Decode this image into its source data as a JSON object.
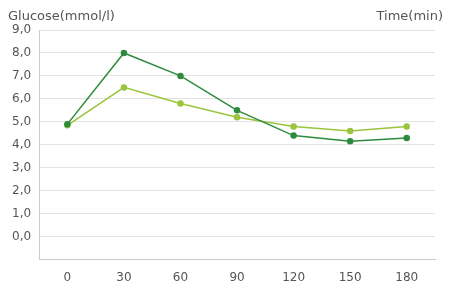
{
  "chart_data": {
    "type": "line",
    "y_label": "Glucose(mmol/l)",
    "x_label": "Time(min)",
    "categories": [
      "0",
      "30",
      "60",
      "90",
      "120",
      "150",
      "180"
    ],
    "series": [
      {
        "color": "#2e8b3e",
        "marker": "circle",
        "values": [
          4.9,
          8.0,
          7.0,
          5.5,
          4.4,
          4.15,
          4.3
        ]
      },
      {
        "color": "#9bc53d",
        "marker": "circle",
        "values": [
          4.85,
          6.5,
          5.8,
          5.2,
          4.8,
          4.6,
          4.8
        ]
      }
    ],
    "ylim": [
      -1,
      9
    ],
    "yticks": [
      {
        "value": 0,
        "label": "0,0"
      },
      {
        "value": 1,
        "label": "1,0"
      },
      {
        "value": 2,
        "label": "2,0"
      },
      {
        "value": 3,
        "label": "3,0"
      },
      {
        "value": 4,
        "label": "4,0"
      },
      {
        "value": 5,
        "label": "5,0"
      },
      {
        "value": 6,
        "label": "6,0"
      },
      {
        "value": 7,
        "label": "7,0"
      },
      {
        "value": 8,
        "label": "8,0"
      },
      {
        "value": 9,
        "label": "9,0"
      }
    ],
    "grid": true
  }
}
